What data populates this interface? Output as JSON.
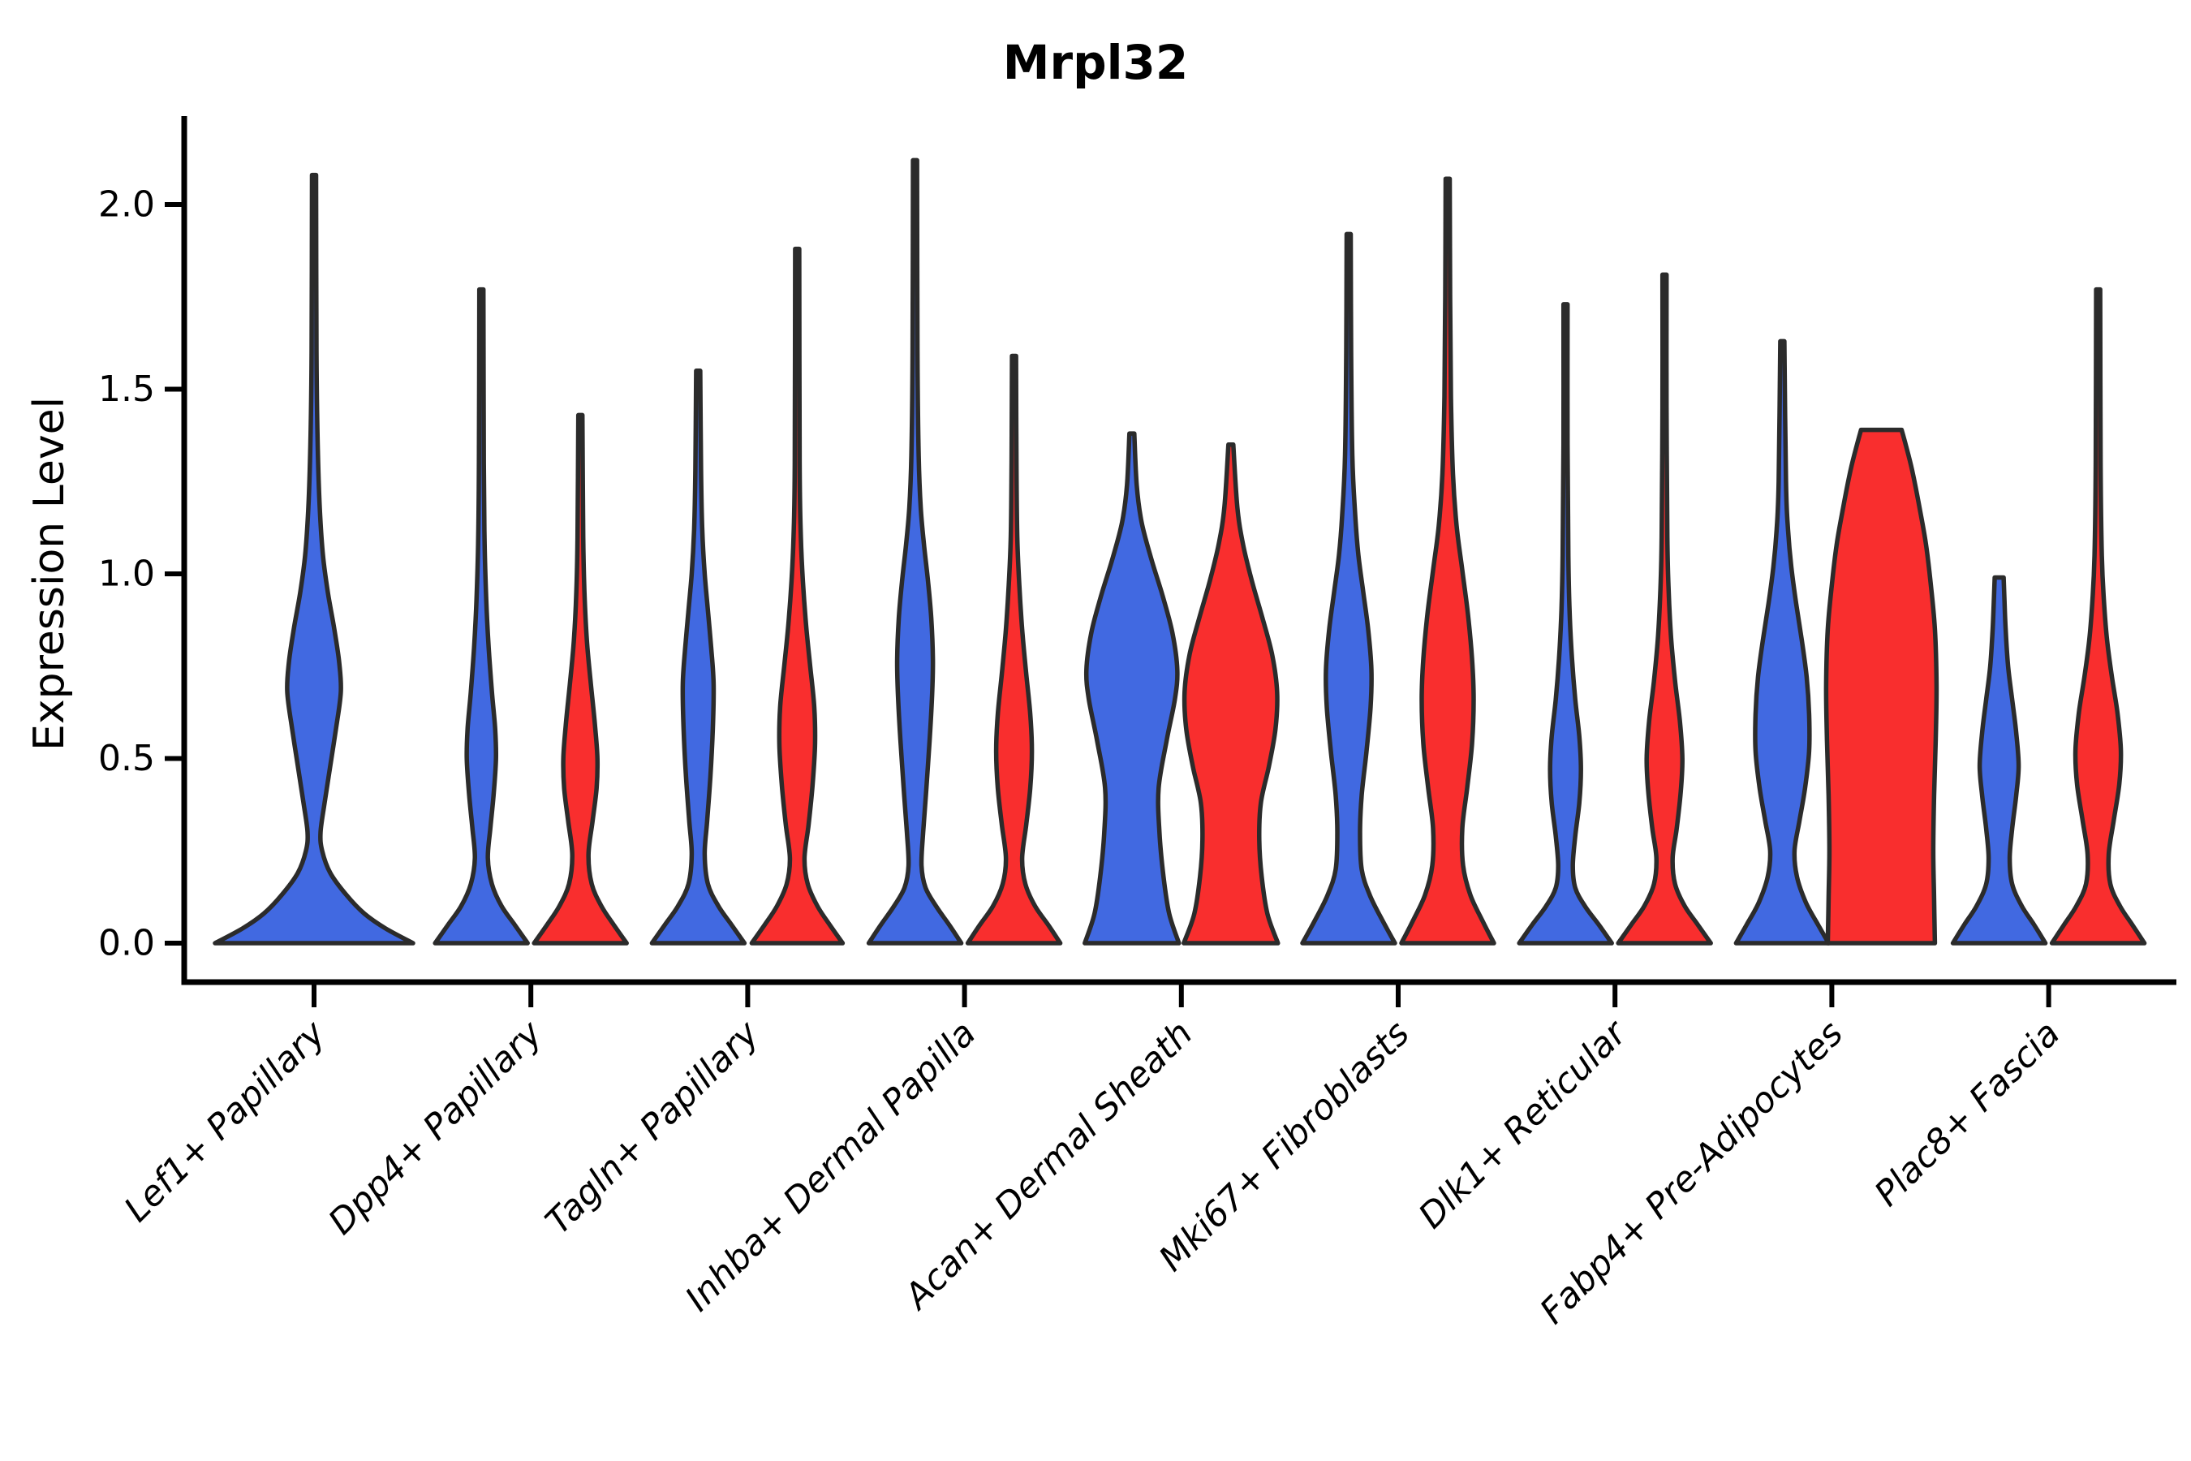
{
  "title": "Mrpl32",
  "chart_data": {
    "type": "violin",
    "title": "Mrpl32",
    "ylabel": "Expression Level",
    "xlabel": "",
    "ylim": [
      -0.1,
      2.24
    ],
    "grid": false,
    "legend": "none",
    "y_ticks": [
      {
        "value": 0.0,
        "label": "0.0"
      },
      {
        "value": 0.5,
        "label": "0.5"
      },
      {
        "value": 1.0,
        "label": "1.0"
      },
      {
        "value": 1.5,
        "label": "1.5"
      },
      {
        "value": 2.0,
        "label": "2.0"
      }
    ],
    "categories": [
      "Lef1+ Papillary",
      "Dpp4+ Papillary",
      "Tagln+ Papillary",
      "Inhba+ Dermal Papilla",
      "Acan+ Dermal Sheath",
      "Mki67+ Fibroblasts",
      "Dlk1+ Reticular",
      "Fabp4+ Pre-Adipocytes",
      "Plac8+ Fascia"
    ],
    "colors": {
      "blue_fill": "#4169e1",
      "red_fill": "#f92e2e",
      "outline": "#2b2b2b",
      "axis": "#000000"
    },
    "x_label_rotation_deg": 45,
    "violins": [
      {
        "category": "Lef1+ Papillary",
        "group": 0,
        "slot": "full",
        "series": "blue",
        "max": 2.08,
        "flat_top": false,
        "profile": [
          [
            0,
            122
          ],
          [
            0.04,
            88
          ],
          [
            0.08,
            62
          ],
          [
            0.13,
            40
          ],
          [
            0.19,
            20
          ],
          [
            0.25,
            10
          ],
          [
            0.3,
            8
          ],
          [
            0.38,
            13
          ],
          [
            0.48,
            20
          ],
          [
            0.58,
            27
          ],
          [
            0.68,
            33
          ],
          [
            0.76,
            31
          ],
          [
            0.85,
            25
          ],
          [
            0.95,
            17
          ],
          [
            1.05,
            11
          ],
          [
            1.18,
            7
          ],
          [
            1.35,
            4.5
          ],
          [
            1.6,
            3
          ],
          [
            2.08,
            2.5
          ]
        ]
      },
      {
        "category": "Dpp4+ Papillary",
        "group": 1,
        "slot": "left",
        "series": "blue",
        "max": 1.77,
        "flat_top": false,
        "profile": [
          [
            0,
            57
          ],
          [
            0.05,
            41
          ],
          [
            0.1,
            25
          ],
          [
            0.16,
            13
          ],
          [
            0.23,
            8
          ],
          [
            0.31,
            11
          ],
          [
            0.4,
            15
          ],
          [
            0.5,
            18
          ],
          [
            0.58,
            17
          ],
          [
            0.68,
            13
          ],
          [
            0.8,
            9
          ],
          [
            0.93,
            6
          ],
          [
            1.08,
            4
          ],
          [
            1.3,
            3
          ],
          [
            1.77,
            2.5
          ]
        ]
      },
      {
        "category": "Dpp4+ Papillary",
        "group": 1,
        "slot": "right",
        "series": "red",
        "max": 1.43,
        "flat_top": false,
        "profile": [
          [
            0,
            57
          ],
          [
            0.05,
            41
          ],
          [
            0.1,
            26
          ],
          [
            0.16,
            14
          ],
          [
            0.24,
            10
          ],
          [
            0.33,
            15
          ],
          [
            0.42,
            20
          ],
          [
            0.5,
            21
          ],
          [
            0.59,
            18
          ],
          [
            0.7,
            13
          ],
          [
            0.82,
            8
          ],
          [
            0.95,
            5
          ],
          [
            1.1,
            3.5
          ],
          [
            1.43,
            2.5
          ]
        ]
      },
      {
        "category": "Tagln+ Papillary",
        "group": 2,
        "slot": "left",
        "series": "blue",
        "max": 1.55,
        "flat_top": false,
        "profile": [
          [
            0,
            57
          ],
          [
            0.05,
            41
          ],
          [
            0.1,
            25
          ],
          [
            0.16,
            12
          ],
          [
            0.24,
            8
          ],
          [
            0.33,
            11
          ],
          [
            0.45,
            15
          ],
          [
            0.58,
            18
          ],
          [
            0.7,
            19
          ],
          [
            0.8,
            16
          ],
          [
            0.9,
            12
          ],
          [
            1.0,
            8
          ],
          [
            1.12,
            5
          ],
          [
            1.28,
            3.5
          ],
          [
            1.55,
            2.5
          ]
        ]
      },
      {
        "category": "Tagln+ Papillary",
        "group": 2,
        "slot": "right",
        "series": "red",
        "max": 1.88,
        "flat_top": false,
        "profile": [
          [
            0,
            56
          ],
          [
            0.05,
            40
          ],
          [
            0.1,
            25
          ],
          [
            0.16,
            13
          ],
          [
            0.23,
            9
          ],
          [
            0.32,
            14
          ],
          [
            0.43,
            19
          ],
          [
            0.54,
            22
          ],
          [
            0.64,
            21
          ],
          [
            0.75,
            16
          ],
          [
            0.86,
            11
          ],
          [
            0.98,
            7
          ],
          [
            1.1,
            4.5
          ],
          [
            1.3,
            3
          ],
          [
            1.88,
            2.5
          ]
        ]
      },
      {
        "category": "Inhba+ Dermal Papilla",
        "group": 3,
        "slot": "left",
        "series": "blue",
        "max": 2.12,
        "flat_top": false,
        "profile": [
          [
            0,
            57
          ],
          [
            0.05,
            42
          ],
          [
            0.1,
            26
          ],
          [
            0.15,
            13
          ],
          [
            0.21,
            8
          ],
          [
            0.3,
            10
          ],
          [
            0.42,
            14
          ],
          [
            0.55,
            18
          ],
          [
            0.67,
            21
          ],
          [
            0.77,
            22
          ],
          [
            0.88,
            20
          ],
          [
            0.98,
            16
          ],
          [
            1.08,
            11
          ],
          [
            1.18,
            7
          ],
          [
            1.32,
            4.5
          ],
          [
            1.6,
            3
          ],
          [
            2.12,
            2.5
          ]
        ]
      },
      {
        "category": "Inhba+ Dermal Papilla",
        "group": 3,
        "slot": "right",
        "series": "red",
        "max": 1.59,
        "flat_top": false,
        "profile": [
          [
            0,
            57
          ],
          [
            0.05,
            42
          ],
          [
            0.1,
            26
          ],
          [
            0.16,
            14
          ],
          [
            0.23,
            10
          ],
          [
            0.32,
            15
          ],
          [
            0.42,
            20
          ],
          [
            0.52,
            22
          ],
          [
            0.62,
            20
          ],
          [
            0.73,
            15
          ],
          [
            0.85,
            10
          ],
          [
            0.97,
            6.5
          ],
          [
            1.1,
            4
          ],
          [
            1.3,
            3
          ],
          [
            1.59,
            2.5
          ]
        ]
      },
      {
        "category": "Acan+ Dermal Sheath",
        "group": 4,
        "slot": "left",
        "series": "blue",
        "max": 1.38,
        "flat_top": false,
        "profile": [
          [
            0,
            58
          ],
          [
            0.08,
            46
          ],
          [
            0.18,
            39
          ],
          [
            0.3,
            34
          ],
          [
            0.42,
            33
          ],
          [
            0.55,
            43
          ],
          [
            0.66,
            53
          ],
          [
            0.74,
            56
          ],
          [
            0.84,
            50
          ],
          [
            0.94,
            38
          ],
          [
            1.04,
            24
          ],
          [
            1.14,
            12
          ],
          [
            1.24,
            6
          ],
          [
            1.38,
            3
          ]
        ]
      },
      {
        "category": "Acan+ Dermal Sheath",
        "group": 4,
        "slot": "right",
        "series": "red",
        "max": 1.35,
        "flat_top": false,
        "profile": [
          [
            0,
            58
          ],
          [
            0.08,
            45
          ],
          [
            0.18,
            38
          ],
          [
            0.28,
            35
          ],
          [
            0.38,
            37
          ],
          [
            0.48,
            47
          ],
          [
            0.58,
            55
          ],
          [
            0.68,
            57
          ],
          [
            0.78,
            51
          ],
          [
            0.88,
            39
          ],
          [
            0.98,
            26
          ],
          [
            1.08,
            15
          ],
          [
            1.18,
            8
          ],
          [
            1.35,
            3
          ]
        ]
      },
      {
        "category": "Mki67+ Fibroblasts",
        "group": 5,
        "slot": "left",
        "series": "blue",
        "max": 1.92,
        "flat_top": false,
        "profile": [
          [
            0,
            57
          ],
          [
            0.06,
            42
          ],
          [
            0.13,
            26
          ],
          [
            0.2,
            16
          ],
          [
            0.3,
            14
          ],
          [
            0.4,
            16
          ],
          [
            0.52,
            22
          ],
          [
            0.64,
            27
          ],
          [
            0.74,
            28
          ],
          [
            0.85,
            24
          ],
          [
            0.95,
            18
          ],
          [
            1.05,
            12
          ],
          [
            1.16,
            8
          ],
          [
            1.32,
            4.5
          ],
          [
            1.6,
            3
          ],
          [
            1.92,
            2.5
          ]
        ]
      },
      {
        "category": "Mki67+ Fibroblasts",
        "group": 5,
        "slot": "right",
        "series": "red",
        "max": 2.07,
        "flat_top": false,
        "profile": [
          [
            0,
            57
          ],
          [
            0.06,
            43
          ],
          [
            0.13,
            28
          ],
          [
            0.21,
            19
          ],
          [
            0.31,
            18
          ],
          [
            0.42,
            24
          ],
          [
            0.54,
            30
          ],
          [
            0.66,
            32
          ],
          [
            0.77,
            30
          ],
          [
            0.89,
            25
          ],
          [
            1.01,
            18
          ],
          [
            1.13,
            11
          ],
          [
            1.27,
            6.5
          ],
          [
            1.48,
            4
          ],
          [
            1.75,
            3
          ],
          [
            2.07,
            2.5
          ]
        ]
      },
      {
        "category": "Dlk1+ Reticular",
        "group": 6,
        "slot": "left",
        "series": "blue",
        "max": 1.73,
        "flat_top": false,
        "profile": [
          [
            0,
            57
          ],
          [
            0.05,
            41
          ],
          [
            0.1,
            24
          ],
          [
            0.15,
            12
          ],
          [
            0.21,
            9
          ],
          [
            0.29,
            12
          ],
          [
            0.38,
            17
          ],
          [
            0.47,
            19
          ],
          [
            0.56,
            17
          ],
          [
            0.66,
            12
          ],
          [
            0.77,
            8
          ],
          [
            0.9,
            5
          ],
          [
            1.05,
            3.5
          ],
          [
            1.35,
            2.5
          ],
          [
            1.73,
            2.5
          ]
        ]
      },
      {
        "category": "Dlk1+ Reticular",
        "group": 6,
        "slot": "right",
        "series": "red",
        "max": 1.81,
        "flat_top": false,
        "profile": [
          [
            0,
            57
          ],
          [
            0.05,
            41
          ],
          [
            0.1,
            25
          ],
          [
            0.16,
            13
          ],
          [
            0.23,
            10
          ],
          [
            0.31,
            15
          ],
          [
            0.41,
            20
          ],
          [
            0.5,
            22
          ],
          [
            0.6,
            19
          ],
          [
            0.71,
            13
          ],
          [
            0.83,
            8
          ],
          [
            0.96,
            5
          ],
          [
            1.1,
            3.5
          ],
          [
            1.45,
            2.5
          ],
          [
            1.81,
            2.5
          ]
        ]
      },
      {
        "category": "Fabp4+ Pre-Adipocytes",
        "group": 7,
        "slot": "left",
        "series": "blue",
        "max": 1.63,
        "flat_top": false,
        "profile": [
          [
            0,
            57
          ],
          [
            0.05,
            44
          ],
          [
            0.11,
            29
          ],
          [
            0.18,
            18
          ],
          [
            0.25,
            15
          ],
          [
            0.33,
            21
          ],
          [
            0.42,
            28
          ],
          [
            0.52,
            33
          ],
          [
            0.62,
            33
          ],
          [
            0.72,
            30
          ],
          [
            0.82,
            24
          ],
          [
            0.92,
            17
          ],
          [
            1.02,
            11
          ],
          [
            1.12,
            7
          ],
          [
            1.25,
            4.5
          ],
          [
            1.63,
            2.5
          ]
        ]
      },
      {
        "category": "Fabp4+ Pre-Adipocytes",
        "group": 7,
        "slot": "right",
        "series": "red",
        "max": 1.39,
        "flat_top": true,
        "profile": [
          [
            0,
            66
          ],
          [
            0.12,
            65
          ],
          [
            0.25,
            64
          ],
          [
            0.4,
            65
          ],
          [
            0.55,
            67
          ],
          [
            0.7,
            68
          ],
          [
            0.85,
            66
          ],
          [
            0.97,
            61
          ],
          [
            1.08,
            55
          ],
          [
            1.18,
            47
          ],
          [
            1.28,
            38
          ],
          [
            1.35,
            30
          ],
          [
            1.39,
            25
          ]
        ]
      },
      {
        "category": "Plac8+ Fascia",
        "group": 8,
        "slot": "left",
        "series": "blue",
        "max": 0.99,
        "flat_top": true,
        "profile": [
          [
            0,
            57
          ],
          [
            0.05,
            43
          ],
          [
            0.1,
            28
          ],
          [
            0.16,
            16
          ],
          [
            0.23,
            13
          ],
          [
            0.31,
            16
          ],
          [
            0.4,
            21
          ],
          [
            0.48,
            24
          ],
          [
            0.57,
            21
          ],
          [
            0.66,
            16
          ],
          [
            0.75,
            11
          ],
          [
            0.85,
            8
          ],
          [
            0.93,
            6.5
          ],
          [
            0.99,
            5.5
          ]
        ]
      },
      {
        "category": "Plac8+ Fascia",
        "group": 8,
        "slot": "right",
        "series": "red",
        "max": 1.77,
        "flat_top": false,
        "profile": [
          [
            0,
            57
          ],
          [
            0.05,
            42
          ],
          [
            0.1,
            27
          ],
          [
            0.16,
            15
          ],
          [
            0.24,
            13
          ],
          [
            0.33,
            19
          ],
          [
            0.43,
            26
          ],
          [
            0.52,
            28
          ],
          [
            0.62,
            24
          ],
          [
            0.72,
            17
          ],
          [
            0.82,
            11
          ],
          [
            0.93,
            7
          ],
          [
            1.05,
            4.5
          ],
          [
            1.3,
            3
          ],
          [
            1.77,
            2.5
          ]
        ]
      }
    ]
  }
}
